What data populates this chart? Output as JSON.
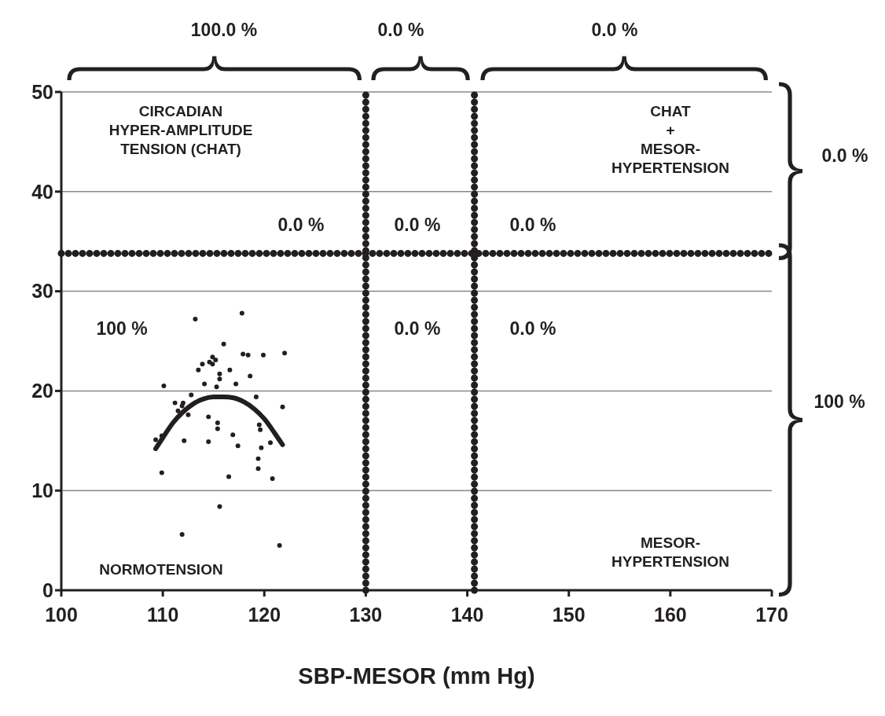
{
  "chart_data": {
    "type": "scatter",
    "xlabel": "SBP-MESOR (mm Hg)",
    "xlim": [
      100,
      170
    ],
    "xticks": [
      100,
      110,
      120,
      130,
      140,
      150,
      160,
      170
    ],
    "ylim": [
      0,
      50
    ],
    "yticks": [
      0,
      10,
      20,
      30,
      40,
      50
    ],
    "grid": "y",
    "legend": false,
    "series": [
      {
        "type": "scatter",
        "marker": "circle",
        "color": "#231f20",
        "x": [
          113.2,
          117.8,
          116.0,
          117.9,
          118.4,
          114.9,
          115.2,
          114.6,
          114.9,
          113.9,
          113.5,
          116.6,
          115.6,
          115.6,
          114.1,
          117.2,
          115.3,
          110.1,
          112.8,
          111.2,
          112.0,
          111.9,
          111.5,
          112.5,
          114.5,
          115.4,
          115.4,
          116.9,
          117.4,
          114.5,
          112.2,
          112.1,
          109.3,
          109.9,
          109.9,
          116.5,
          115.6,
          111.9,
          119.9,
          122.0,
          118.6,
          119.2,
          119.5,
          119.6,
          120.6,
          119.7,
          119.4,
          119.4,
          120.8,
          121.5,
          121.8
        ],
        "values": [
          27.2,
          27.8,
          24.7,
          23.7,
          23.6,
          23.4,
          23.1,
          22.9,
          22.7,
          22.7,
          22.1,
          22.1,
          21.7,
          21.2,
          20.7,
          20.7,
          20.4,
          20.5,
          19.6,
          18.8,
          18.8,
          18.5,
          18.0,
          17.6,
          17.4,
          16.8,
          16.2,
          15.6,
          14.5,
          14.9,
          null,
          15.0,
          15.1,
          15.5,
          11.8,
          11.4,
          8.4,
          5.6,
          23.6,
          23.8,
          21.5,
          19.4,
          16.6,
          16.1,
          14.8,
          14.3,
          13.2,
          12.2,
          11.2,
          4.5,
          18.4
        ]
      },
      {
        "type": "line",
        "marker": "none",
        "line_style": "solid",
        "color": "#231f20",
        "x": [
          109.3,
          110,
          111,
          112,
          113,
          114,
          115,
          116,
          117,
          118,
          119,
          120,
          121,
          121.8
        ],
        "values": [
          14.2,
          15.3,
          16.8,
          17.9,
          18.7,
          19.2,
          19.4,
          19.4,
          19.3,
          18.9,
          18.2,
          17.2,
          15.8,
          14.6
        ]
      }
    ],
    "ref_lines": [
      {
        "axis": "x",
        "value": 130,
        "color": "#231f20",
        "line_style": "dotted"
      },
      {
        "axis": "x",
        "value": 140.7,
        "color": "#231f20",
        "line_style": "dotted"
      },
      {
        "axis": "y",
        "value": 33.8,
        "color": "#231f20",
        "line_style": "dotted"
      }
    ],
    "annotations": [
      "100.0 %",
      "0.0 %",
      "0.0 %",
      "0.0 %",
      "100 %",
      "CIRCADIAN\nHYPER-AMPLITUDE\nTENSION  (CHAT)",
      "CHAT\n+\nMESOR-\nHYPERTENSION",
      "NORMOTENSION",
      "MESOR-\nHYPERTENSION",
      "0.0 %",
      "0.0 %",
      "0.0 %",
      "100 %",
      "0.0 %",
      "0.0 %"
    ]
  }
}
